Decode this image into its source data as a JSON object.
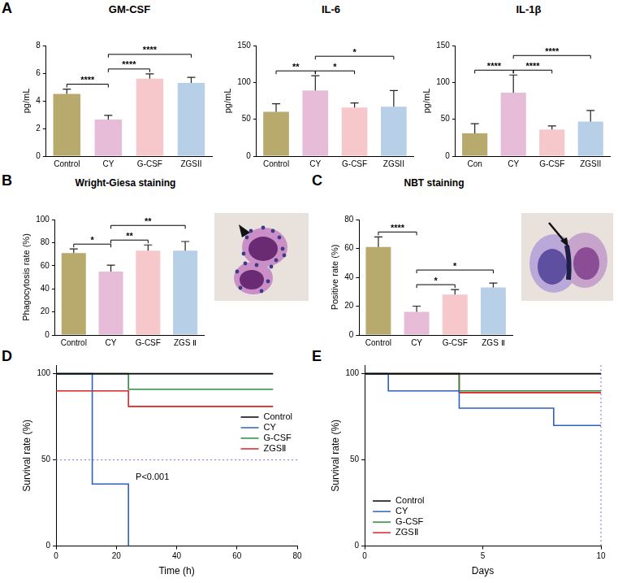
{
  "chart_data": [
    {
      "panel_label": "A",
      "type": "bar",
      "title": "GM-CSF",
      "y_label": "pg/mL",
      "categories": [
        "Control",
        "CY",
        "G-CSF",
        "ZGSII"
      ],
      "colors": [
        "#b8a96c",
        "#e6bcd8",
        "#f6c8cc",
        "#b8cfe8"
      ],
      "values": [
        4.5,
        2.65,
        5.6,
        5.3
      ],
      "errors": [
        0.35,
        0.3,
        0.35,
        0.4
      ],
      "ylim": [
        0,
        8
      ],
      "yticks": [
        0,
        2,
        4,
        6,
        8
      ],
      "grid": false,
      "annotations": [
        {
          "from": "Control",
          "to": "CY",
          "text": "****"
        },
        {
          "from": "CY",
          "to": "G-CSF",
          "text": "****"
        },
        {
          "from": "CY",
          "to": "ZGSII",
          "text": "****"
        }
      ]
    },
    {
      "type": "bar",
      "title": "IL-6",
      "y_label": "pg/mL",
      "categories": [
        "Control",
        "CY",
        "G-CSF",
        "ZGSII"
      ],
      "colors": [
        "#b8a96c",
        "#e6bcd8",
        "#f6c8cc",
        "#b8cfe8"
      ],
      "values": [
        60,
        89,
        66,
        67
      ],
      "errors": [
        11,
        20,
        6,
        22
      ],
      "ylim": [
        0,
        150
      ],
      "yticks": [
        0,
        50,
        100,
        150
      ],
      "grid": false,
      "annotations": [
        {
          "from": "Control",
          "to": "CY",
          "text": "**"
        },
        {
          "from": "CY",
          "to": "G-CSF",
          "text": "*"
        },
        {
          "from": "CY",
          "to": "ZGSII",
          "text": "*"
        }
      ]
    },
    {
      "type": "bar",
      "title": "IL-1β",
      "y_label": "pg/mL",
      "categories": [
        "Con",
        "CY",
        "G-CSF",
        "ZGSII"
      ],
      "colors": [
        "#b8a96c",
        "#e6bcd8",
        "#f6c8cc",
        "#b8cfe8"
      ],
      "values": [
        31,
        86,
        36,
        47
      ],
      "errors": [
        13,
        24,
        5,
        15
      ],
      "ylim": [
        0,
        150
      ],
      "yticks": [
        0,
        50,
        100,
        150
      ],
      "grid": false,
      "annotations": [
        {
          "from": "Con",
          "to": "CY",
          "text": "****"
        },
        {
          "from": "CY",
          "to": "G-CSF",
          "text": "****"
        },
        {
          "from": "CY",
          "to": "ZGSII",
          "text": "****"
        }
      ]
    },
    {
      "panel_label": "B",
      "type": "bar",
      "title": "Wright-Giesa staining",
      "y_label": "Phagocytosis rate (%)",
      "categories": [
        "Control",
        "CY",
        "G-CSF",
        "ZGS Ⅱ"
      ],
      "colors": [
        "#b8a96c",
        "#e6bcd8",
        "#f6c8cc",
        "#b8cfe8"
      ],
      "values": [
        71,
        55,
        73,
        73
      ],
      "errors": [
        3.5,
        5.5,
        5,
        8
      ],
      "ylim": [
        0,
        100
      ],
      "yticks": [
        0,
        20,
        40,
        60,
        80,
        100
      ],
      "grid": false,
      "annotations": [
        {
          "from": "Control",
          "to": "CY",
          "text": "*"
        },
        {
          "from": "CY",
          "to": "G-CSF",
          "text": "**"
        },
        {
          "from": "CY",
          "to": "ZGS Ⅱ",
          "text": "**"
        }
      ]
    },
    {
      "panel_label": "C",
      "type": "bar",
      "title": "NBT staining",
      "y_label": "Positive rate (%)",
      "categories": [
        "Control",
        "CY",
        "G-CSF",
        "ZGS Ⅱ"
      ],
      "colors": [
        "#b8a96c",
        "#e6bcd8",
        "#f6c8cc",
        "#b8cfe8"
      ],
      "values": [
        61,
        16,
        28,
        33
      ],
      "errors": [
        7,
        4,
        3.5,
        3
      ],
      "ylim": [
        0,
        80
      ],
      "yticks": [
        0,
        20,
        40,
        60,
        80
      ],
      "grid": false,
      "annotations": [
        {
          "from": "Control",
          "to": "CY",
          "text": "****"
        },
        {
          "from": "CY",
          "to": "G-CSF",
          "text": "*"
        },
        {
          "from": "CY",
          "to": "ZGS Ⅱ",
          "text": "*"
        }
      ]
    },
    {
      "panel_label": "D",
      "type": "line",
      "line_style": "step",
      "x_label": "Time (h)",
      "y_label": "Survival rate (%)",
      "xlim": [
        0,
        80
      ],
      "xticks": [
        0,
        20,
        40,
        60,
        80
      ],
      "ylim": [
        0,
        105
      ],
      "yticks": [
        0,
        50,
        100
      ],
      "grid": false,
      "legend": "right",
      "series": [
        {
          "name": "Control",
          "color": "#000000",
          "x": [
            0,
            72
          ],
          "values": [
            100,
            100
          ]
        },
        {
          "name": "CY",
          "color": "#2f5fc4",
          "x": [
            0,
            12,
            24
          ],
          "values": [
            100,
            36,
            0
          ]
        },
        {
          "name": "G-CSF",
          "color": "#2e8b3e",
          "x": [
            0,
            24,
            72
          ],
          "values": [
            100,
            91,
            91
          ]
        },
        {
          "name": "ZGSⅡ",
          "color": "#dd2222",
          "x": [
            0,
            24,
            72
          ],
          "values": [
            90,
            81,
            81
          ]
        }
      ],
      "reference_lines": [
        {
          "axis": "y",
          "value": 50
        }
      ],
      "annotations": [
        {
          "text": "P<0.001"
        }
      ]
    },
    {
      "panel_label": "E",
      "type": "line",
      "line_style": "step",
      "x_label": "Days",
      "y_label": "Survival rate (%)",
      "xlim": [
        0,
        10
      ],
      "xticks": [
        0,
        5,
        10
      ],
      "ylim": [
        0,
        105
      ],
      "yticks": [
        0,
        50,
        100
      ],
      "grid": false,
      "legend": "lower left",
      "series": [
        {
          "name": "Control",
          "color": "#000000",
          "x": [
            0,
            10
          ],
          "values": [
            100,
            100
          ]
        },
        {
          "name": "CY",
          "color": "#2f5fc4",
          "x": [
            0,
            1,
            4,
            8,
            10
          ],
          "values": [
            100,
            90,
            80,
            70,
            70
          ]
        },
        {
          "name": "G-CSF",
          "color": "#2e8b3e",
          "x": [
            0,
            4,
            10
          ],
          "values": [
            100,
            90,
            90
          ]
        },
        {
          "name": "ZGSⅡ",
          "color": "#dd2222",
          "x": [
            0,
            4,
            10
          ],
          "values": [
            100,
            89,
            89
          ]
        }
      ],
      "reference_lines": [
        {
          "axis": "x",
          "value": 10
        }
      ]
    }
  ]
}
